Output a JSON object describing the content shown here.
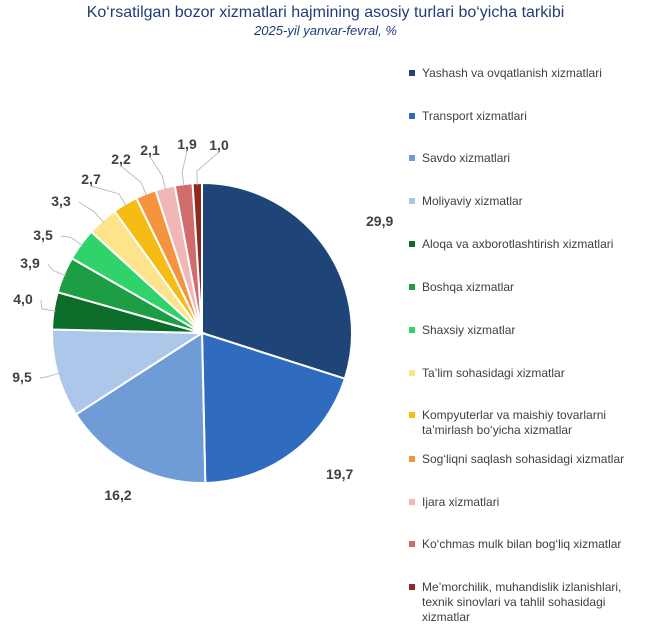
{
  "title": "Ko‘rsatilgan bozor xizmatlari hajmining asosiy turlari bo‘yicha tarkibi",
  "subtitle": "2025-yil yanvar-fevral, %",
  "chart_data": {
    "type": "pie",
    "title": "Ko‘rsatilgan bozor xizmatlari hajmining asosiy turlari bo‘yicha tarkibi",
    "subtitle": "2025-yil yanvar-fevral, %",
    "categories": [
      "Yashash va ovqatlanish xizmatlari",
      "Transport xizmatlari",
      "Savdo xizmatlari",
      "Moliyaviy xizmatlar",
      "Aloqa va axborotlashtirish xizmatlari",
      "Boshqa xizmatlar",
      "Shaxsiy xizmatlar",
      "Ta’lim sohasidagi xizmatlar",
      "Kompyuterlar va maishiy tovarlarni ta’mirlash bo‘yicha xizmatlar",
      "Sog‘liqni saqlash sohasidagi xizmatlar",
      "Ijara xizmatlari",
      "Ko‘chmas mulk bilan bog‘liq xizmatlar",
      "Me’morchilik, muhandislik izlanishlari, texnik sinovlari va tahlil sohasidagi xizmatlar"
    ],
    "values": [
      29.9,
      19.7,
      16.2,
      9.5,
      4.0,
      3.9,
      3.5,
      3.3,
      2.7,
      2.2,
      2.1,
      1.9,
      1.0
    ],
    "value_labels": [
      "29,9",
      "19,7",
      "16,2",
      "9,5",
      "4,0",
      "3,9",
      "3,5",
      "3,3",
      "2,7",
      "2,2",
      "2,1",
      "1,9",
      "1,0"
    ],
    "colors": [
      "#1f4478",
      "#2f6bbf",
      "#6f9bd7",
      "#adc7ea",
      "#0c6d2b",
      "#1e9e44",
      "#2fd36a",
      "#fde38a",
      "#f6bc14",
      "#f4943f",
      "#f0b7b6",
      "#d06c6c",
      "#8f2a1f"
    ],
    "legend_position": "right",
    "start_angle": "12 o'clock",
    "direction": "clockwise"
  }
}
